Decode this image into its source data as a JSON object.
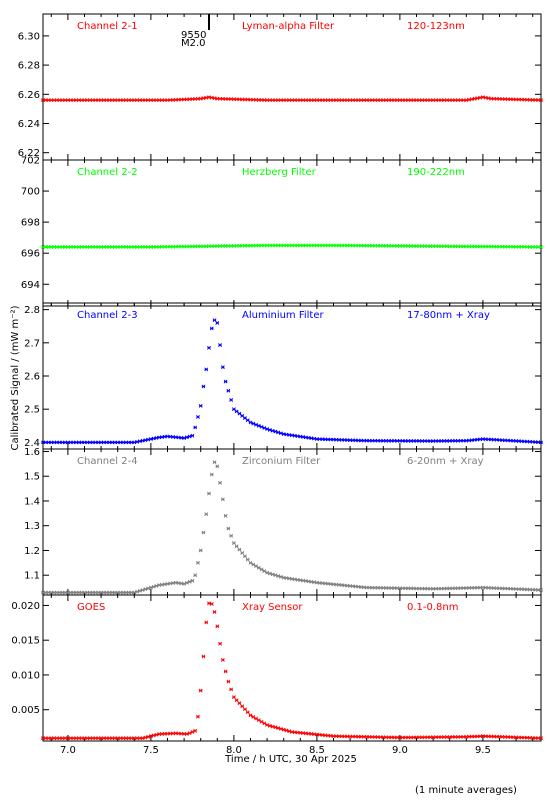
{
  "footnote": "(1 minute averages)",
  "ylabel": "Calibrated Signal / (mW m⁻²)",
  "xlabel": "Time / h UTC, 30 Apr 2025",
  "flare_marker": {
    "number": "9550",
    "class": "M2.0",
    "time": 7.85
  },
  "colors": {
    "red": "#ff0000",
    "green": "#00ff00",
    "blue": "#0000ff",
    "grey": "#808080",
    "axis": "#000000"
  },
  "chart_data": [
    {
      "type": "scatter",
      "channel": "Channel 2-1",
      "filter": "Lyman-alpha Filter",
      "band": "120-123nm",
      "color": "#ff0000",
      "ylim": [
        6.215,
        6.315
      ],
      "yticks": [
        "6.22",
        "6.24",
        "6.26",
        "6.28",
        "6.30"
      ],
      "xlim": [
        6.85,
        9.85
      ],
      "baseline": 6.256,
      "points": [
        [
          6.85,
          6.256
        ],
        [
          7.6,
          6.256
        ],
        [
          7.8,
          6.257
        ],
        [
          7.85,
          6.258
        ],
        [
          7.9,
          6.257
        ],
        [
          8.2,
          6.256
        ],
        [
          9.4,
          6.256
        ],
        [
          9.5,
          6.258
        ],
        [
          9.55,
          6.257
        ],
        [
          9.85,
          6.256
        ]
      ]
    },
    {
      "type": "scatter",
      "channel": "Channel 2-2",
      "filter": "Herzberg Filter",
      "band": "190-222nm",
      "color": "#00ff00",
      "ylim": [
        692.6,
        702.0
      ],
      "yticks": [
        "694",
        "696",
        "698",
        "700",
        "702"
      ],
      "xlim": [
        6.85,
        9.85
      ],
      "baseline": 696.4,
      "points": [
        [
          6.85,
          696.4
        ],
        [
          7.5,
          696.4
        ],
        [
          8.2,
          696.5
        ],
        [
          8.6,
          696.5
        ],
        [
          9.85,
          696.4
        ]
      ]
    },
    {
      "type": "scatter",
      "channel": "Channel 2-3",
      "filter": "Aluminium Filter",
      "band": "17-80nm + Xray",
      "color": "#0000ff",
      "ylim": [
        2.38,
        2.82
      ],
      "yticks": [
        "2.4",
        "2.5",
        "2.6",
        "2.7",
        "2.8"
      ],
      "xlim": [
        6.85,
        9.85
      ],
      "points": [
        [
          6.85,
          2.4
        ],
        [
          7.4,
          2.4
        ],
        [
          7.55,
          2.415
        ],
        [
          7.6,
          2.418
        ],
        [
          7.7,
          2.413
        ],
        [
          7.75,
          2.42
        ],
        [
          7.77,
          2.45
        ],
        [
          7.8,
          2.51
        ],
        [
          7.82,
          2.58
        ],
        [
          7.84,
          2.64
        ],
        [
          7.86,
          2.73
        ],
        [
          7.88,
          2.77
        ],
        [
          7.9,
          2.76
        ],
        [
          7.92,
          2.68
        ],
        [
          7.94,
          2.6
        ],
        [
          7.97,
          2.55
        ],
        [
          8.0,
          2.5
        ],
        [
          8.1,
          2.46
        ],
        [
          8.2,
          2.44
        ],
        [
          8.3,
          2.425
        ],
        [
          8.5,
          2.41
        ],
        [
          8.8,
          2.405
        ],
        [
          9.2,
          2.404
        ],
        [
          9.4,
          2.405
        ],
        [
          9.5,
          2.41
        ],
        [
          9.85,
          2.4
        ]
      ]
    },
    {
      "type": "scatter",
      "channel": "Channel 2-4",
      "filter": "Zirconium Filter",
      "band": "6-20nm + Xray",
      "color": "#808080",
      "ylim": [
        1.02,
        1.61
      ],
      "yticks": [
        "1.1",
        "1.2",
        "1.3",
        "1.4",
        "1.5",
        "1.6"
      ],
      "xlim": [
        6.85,
        9.85
      ],
      "points": [
        [
          6.85,
          1.03
        ],
        [
          7.4,
          1.03
        ],
        [
          7.55,
          1.06
        ],
        [
          7.65,
          1.07
        ],
        [
          7.7,
          1.065
        ],
        [
          7.76,
          1.08
        ],
        [
          7.8,
          1.2
        ],
        [
          7.83,
          1.33
        ],
        [
          7.86,
          1.48
        ],
        [
          7.88,
          1.56
        ],
        [
          7.9,
          1.54
        ],
        [
          7.93,
          1.42
        ],
        [
          7.96,
          1.3
        ],
        [
          8.0,
          1.23
        ],
        [
          8.1,
          1.15
        ],
        [
          8.2,
          1.11
        ],
        [
          8.3,
          1.09
        ],
        [
          8.5,
          1.07
        ],
        [
          8.8,
          1.05
        ],
        [
          9.2,
          1.045
        ],
        [
          9.5,
          1.05
        ],
        [
          9.85,
          1.04
        ]
      ]
    },
    {
      "type": "scatter",
      "channel": "GOES",
      "filter": "Xray Sensor",
      "band": "0.1-0.8nm",
      "color": "#ff0000",
      "ylim": [
        0.0005,
        0.0215
      ],
      "yticks": [
        "0.005",
        "0.010",
        "0.015",
        "0.020"
      ],
      "xlim": [
        6.85,
        9.85
      ],
      "points": [
        [
          6.85,
          0.0009
        ],
        [
          7.45,
          0.0009
        ],
        [
          7.55,
          0.0015
        ],
        [
          7.65,
          0.0016
        ],
        [
          7.72,
          0.0015
        ],
        [
          7.77,
          0.002
        ],
        [
          7.79,
          0.005
        ],
        [
          7.81,
          0.0105
        ],
        [
          7.83,
          0.017
        ],
        [
          7.85,
          0.0203
        ],
        [
          7.87,
          0.0202
        ],
        [
          7.89,
          0.0185
        ],
        [
          7.91,
          0.0155
        ],
        [
          7.93,
          0.0125
        ],
        [
          7.96,
          0.0095
        ],
        [
          8.0,
          0.0068
        ],
        [
          8.1,
          0.0042
        ],
        [
          8.2,
          0.0028
        ],
        [
          8.35,
          0.0018
        ],
        [
          8.6,
          0.0012
        ],
        [
          9.0,
          0.001
        ],
        [
          9.4,
          0.0011
        ],
        [
          9.5,
          0.0012
        ],
        [
          9.85,
          0.0009
        ]
      ]
    }
  ],
  "xticks": [
    "7.0",
    "7.5",
    "8.0",
    "8.5",
    "9.0",
    "9.5"
  ]
}
